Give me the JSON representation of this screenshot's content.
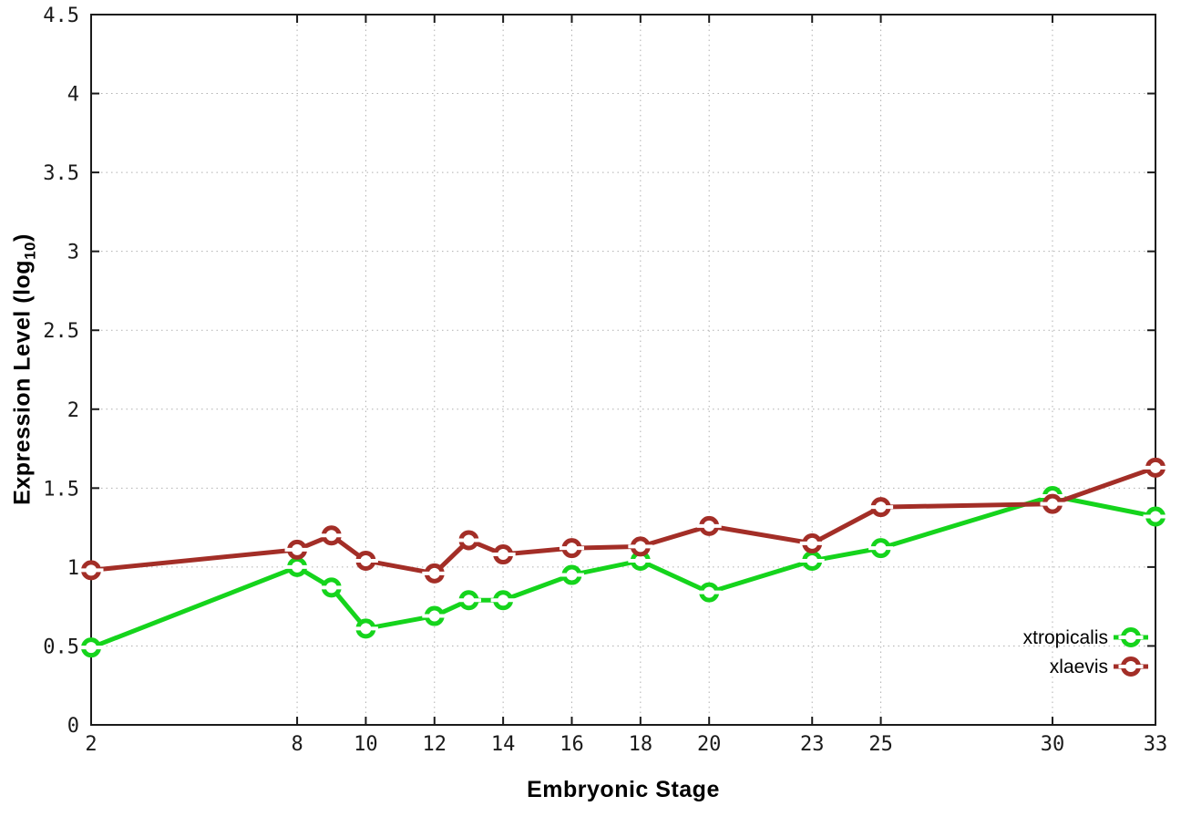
{
  "page": {
    "background_color": "#ffffff",
    "text_color": "#1b1b1b"
  },
  "chart_data": {
    "type": "line",
    "title": "",
    "xlabel": "Embryonic Stage",
    "ylabel": "Expression Level (log10)",
    "ylabel_parts": {
      "main": "Expression Level (log",
      "sub": "10",
      "close": ")"
    },
    "xlim": [
      2,
      33
    ],
    "ylim": [
      0,
      4.5
    ],
    "x_ticks": [
      2,
      8,
      10,
      12,
      14,
      16,
      18,
      20,
      23,
      25,
      30,
      33
    ],
    "y_ticks": [
      0,
      0.5,
      1,
      1.5,
      2,
      2.5,
      3,
      3.5,
      4,
      4.5
    ],
    "grid": true,
    "grid_color": "#b0b0b0",
    "border_color": "#1b1b1b",
    "tick_label_color": "#1b1b1b",
    "legend_position": "bottom-right",
    "marker": "open-circle",
    "series": [
      {
        "name": "xtropicalis",
        "color": "#15d41c",
        "x": [
          2,
          8,
          9,
          10,
          12,
          13,
          14,
          16,
          18,
          20,
          23,
          25,
          30,
          33
        ],
        "y": [
          0.49,
          1.0,
          0.87,
          0.61,
          0.69,
          0.79,
          0.79,
          0.95,
          1.04,
          0.84,
          1.04,
          1.12,
          1.45,
          1.32
        ]
      },
      {
        "name": "xlaevis",
        "color": "#a32e27",
        "x": [
          2,
          8,
          9,
          10,
          12,
          13,
          14,
          16,
          18,
          20,
          23,
          25,
          30,
          33
        ],
        "y": [
          0.98,
          1.11,
          1.2,
          1.04,
          0.96,
          1.17,
          1.08,
          1.12,
          1.13,
          1.26,
          1.15,
          1.38,
          1.4,
          1.63
        ]
      }
    ]
  }
}
